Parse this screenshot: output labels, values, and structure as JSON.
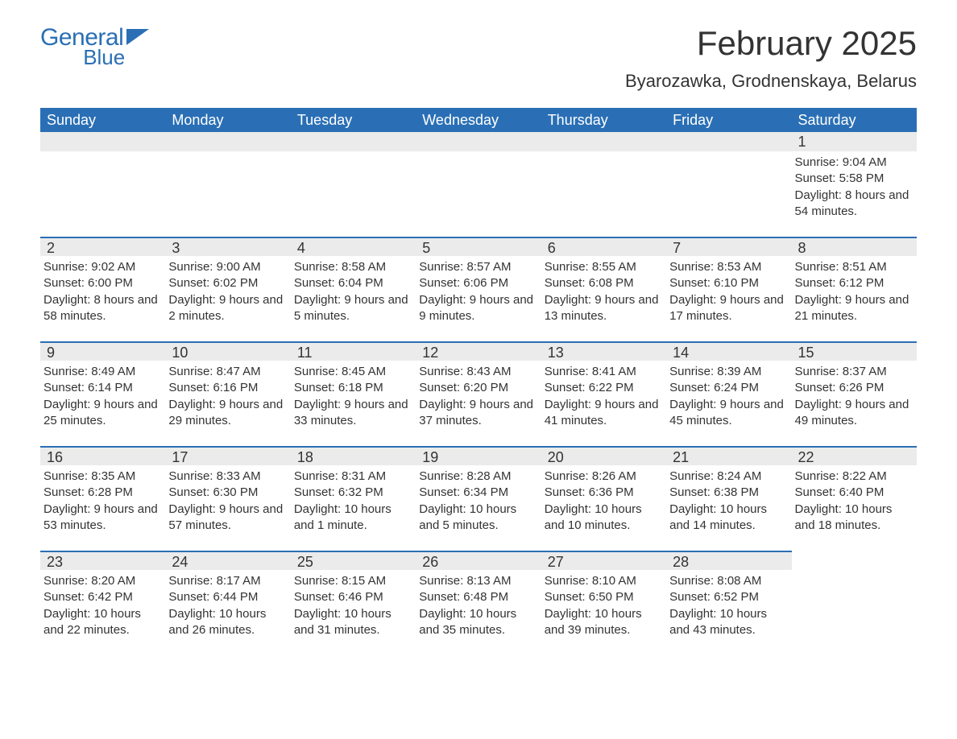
{
  "logo": {
    "general": "General",
    "blue": "Blue",
    "flag_color": "#2a6fb5"
  },
  "header": {
    "title": "February 2025",
    "subtitle": "Byarozawka, Grodnenskaya, Belarus"
  },
  "colors": {
    "header_bg": "#2a6fb5",
    "header_text": "#ffffff",
    "daynum_bg": "#ebebeb",
    "border_top": "#2a6fb5",
    "text": "#333333",
    "background": "#ffffff"
  },
  "typography": {
    "title_fontsize": 42,
    "subtitle_fontsize": 22,
    "dayheader_fontsize": 18,
    "daynumber_fontsize": 18,
    "body_fontsize": 15
  },
  "day_headers": [
    "Sunday",
    "Monday",
    "Tuesday",
    "Wednesday",
    "Thursday",
    "Friday",
    "Saturday"
  ],
  "weeks": [
    [
      null,
      null,
      null,
      null,
      null,
      null,
      {
        "day": "1",
        "sunrise": "Sunrise: 9:04 AM",
        "sunset": "Sunset: 5:58 PM",
        "daylight": "Daylight: 8 hours and 54 minutes."
      }
    ],
    [
      {
        "day": "2",
        "sunrise": "Sunrise: 9:02 AM",
        "sunset": "Sunset: 6:00 PM",
        "daylight": "Daylight: 8 hours and 58 minutes."
      },
      {
        "day": "3",
        "sunrise": "Sunrise: 9:00 AM",
        "sunset": "Sunset: 6:02 PM",
        "daylight": "Daylight: 9 hours and 2 minutes."
      },
      {
        "day": "4",
        "sunrise": "Sunrise: 8:58 AM",
        "sunset": "Sunset: 6:04 PM",
        "daylight": "Daylight: 9 hours and 5 minutes."
      },
      {
        "day": "5",
        "sunrise": "Sunrise: 8:57 AM",
        "sunset": "Sunset: 6:06 PM",
        "daylight": "Daylight: 9 hours and 9 minutes."
      },
      {
        "day": "6",
        "sunrise": "Sunrise: 8:55 AM",
        "sunset": "Sunset: 6:08 PM",
        "daylight": "Daylight: 9 hours and 13 minutes."
      },
      {
        "day": "7",
        "sunrise": "Sunrise: 8:53 AM",
        "sunset": "Sunset: 6:10 PM",
        "daylight": "Daylight: 9 hours and 17 minutes."
      },
      {
        "day": "8",
        "sunrise": "Sunrise: 8:51 AM",
        "sunset": "Sunset: 6:12 PM",
        "daylight": "Daylight: 9 hours and 21 minutes."
      }
    ],
    [
      {
        "day": "9",
        "sunrise": "Sunrise: 8:49 AM",
        "sunset": "Sunset: 6:14 PM",
        "daylight": "Daylight: 9 hours and 25 minutes."
      },
      {
        "day": "10",
        "sunrise": "Sunrise: 8:47 AM",
        "sunset": "Sunset: 6:16 PM",
        "daylight": "Daylight: 9 hours and 29 minutes."
      },
      {
        "day": "11",
        "sunrise": "Sunrise: 8:45 AM",
        "sunset": "Sunset: 6:18 PM",
        "daylight": "Daylight: 9 hours and 33 minutes."
      },
      {
        "day": "12",
        "sunrise": "Sunrise: 8:43 AM",
        "sunset": "Sunset: 6:20 PM",
        "daylight": "Daylight: 9 hours and 37 minutes."
      },
      {
        "day": "13",
        "sunrise": "Sunrise: 8:41 AM",
        "sunset": "Sunset: 6:22 PM",
        "daylight": "Daylight: 9 hours and 41 minutes."
      },
      {
        "day": "14",
        "sunrise": "Sunrise: 8:39 AM",
        "sunset": "Sunset: 6:24 PM",
        "daylight": "Daylight: 9 hours and 45 minutes."
      },
      {
        "day": "15",
        "sunrise": "Sunrise: 8:37 AM",
        "sunset": "Sunset: 6:26 PM",
        "daylight": "Daylight: 9 hours and 49 minutes."
      }
    ],
    [
      {
        "day": "16",
        "sunrise": "Sunrise: 8:35 AM",
        "sunset": "Sunset: 6:28 PM",
        "daylight": "Daylight: 9 hours and 53 minutes."
      },
      {
        "day": "17",
        "sunrise": "Sunrise: 8:33 AM",
        "sunset": "Sunset: 6:30 PM",
        "daylight": "Daylight: 9 hours and 57 minutes."
      },
      {
        "day": "18",
        "sunrise": "Sunrise: 8:31 AM",
        "sunset": "Sunset: 6:32 PM",
        "daylight": "Daylight: 10 hours and 1 minute."
      },
      {
        "day": "19",
        "sunrise": "Sunrise: 8:28 AM",
        "sunset": "Sunset: 6:34 PM",
        "daylight": "Daylight: 10 hours and 5 minutes."
      },
      {
        "day": "20",
        "sunrise": "Sunrise: 8:26 AM",
        "sunset": "Sunset: 6:36 PM",
        "daylight": "Daylight: 10 hours and 10 minutes."
      },
      {
        "day": "21",
        "sunrise": "Sunrise: 8:24 AM",
        "sunset": "Sunset: 6:38 PM",
        "daylight": "Daylight: 10 hours and 14 minutes."
      },
      {
        "day": "22",
        "sunrise": "Sunrise: 8:22 AM",
        "sunset": "Sunset: 6:40 PM",
        "daylight": "Daylight: 10 hours and 18 minutes."
      }
    ],
    [
      {
        "day": "23",
        "sunrise": "Sunrise: 8:20 AM",
        "sunset": "Sunset: 6:42 PM",
        "daylight": "Daylight: 10 hours and 22 minutes."
      },
      {
        "day": "24",
        "sunrise": "Sunrise: 8:17 AM",
        "sunset": "Sunset: 6:44 PM",
        "daylight": "Daylight: 10 hours and 26 minutes."
      },
      {
        "day": "25",
        "sunrise": "Sunrise: 8:15 AM",
        "sunset": "Sunset: 6:46 PM",
        "daylight": "Daylight: 10 hours and 31 minutes."
      },
      {
        "day": "26",
        "sunrise": "Sunrise: 8:13 AM",
        "sunset": "Sunset: 6:48 PM",
        "daylight": "Daylight: 10 hours and 35 minutes."
      },
      {
        "day": "27",
        "sunrise": "Sunrise: 8:10 AM",
        "sunset": "Sunset: 6:50 PM",
        "daylight": "Daylight: 10 hours and 39 minutes."
      },
      {
        "day": "28",
        "sunrise": "Sunrise: 8:08 AM",
        "sunset": "Sunset: 6:52 PM",
        "daylight": "Daylight: 10 hours and 43 minutes."
      },
      null
    ]
  ]
}
